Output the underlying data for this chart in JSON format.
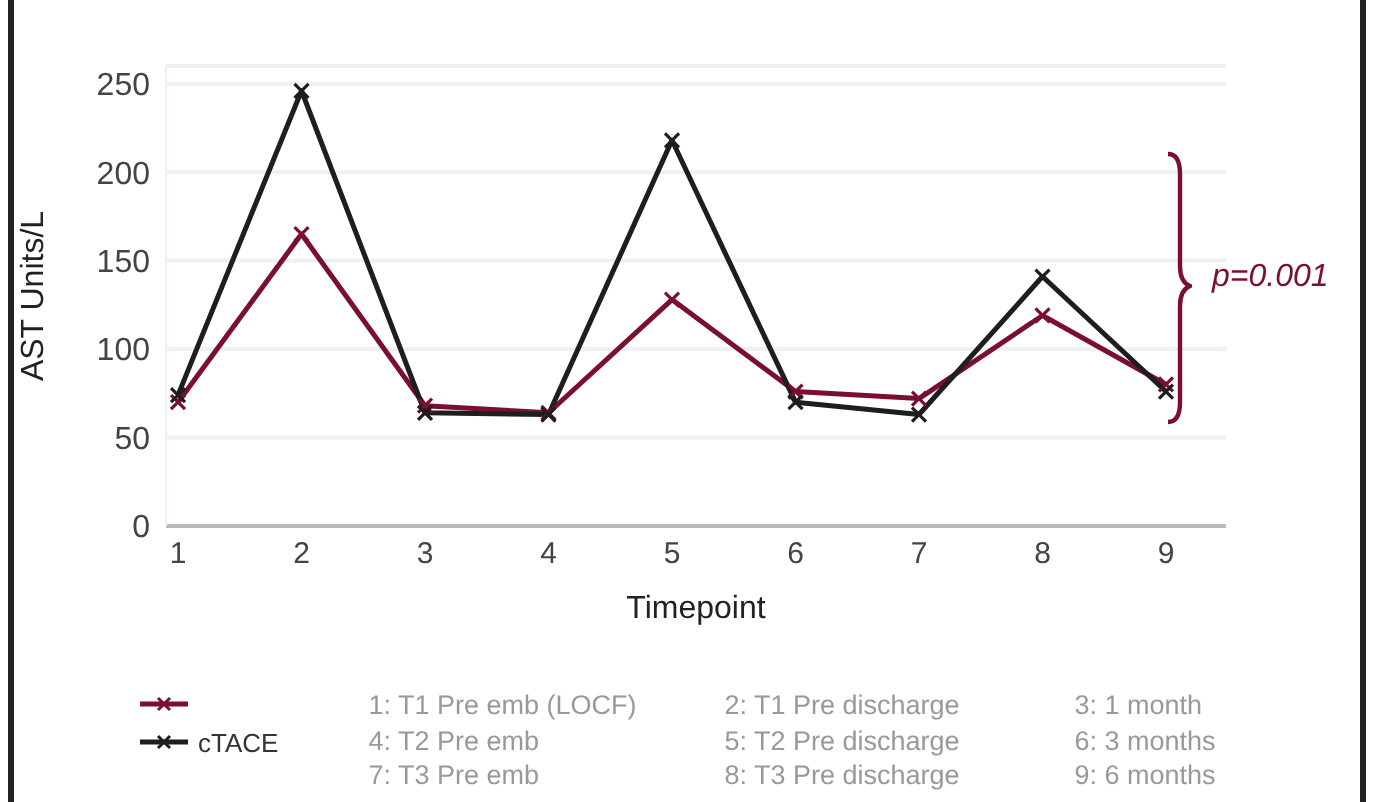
{
  "chart_data": {
    "type": "line",
    "xlabel": "Timepoint",
    "ylabel": "AST Units/L",
    "categories": [
      "1",
      "2",
      "3",
      "4",
      "5",
      "6",
      "7",
      "8",
      "9"
    ],
    "ylim": [
      0,
      260
    ],
    "yticks": [
      0,
      50,
      100,
      150,
      200,
      250
    ],
    "series": [
      {
        "color": "#7b0f2e",
        "values": [
          70,
          165,
          68,
          64,
          128,
          76,
          72,
          119,
          80
        ]
      },
      {
        "name": "cTACE",
        "color": "#1e1e1e",
        "values": [
          74,
          246,
          64,
          63,
          218,
          70,
          63,
          141,
          76
        ]
      }
    ],
    "marker": "cross",
    "grid": "y",
    "legend": "bottom left",
    "annotations": [
      "p=0.001",
      "1: T1 Pre emb (LOCF)",
      "2: T1 Pre discharge",
      "3: 1 month",
      "4: T2 Pre emb",
      "5: T2 Pre discharge",
      "6: 3 months",
      "7: T3 Pre emb",
      "8: T3 Pre discharge",
      "9: 6 months"
    ]
  }
}
